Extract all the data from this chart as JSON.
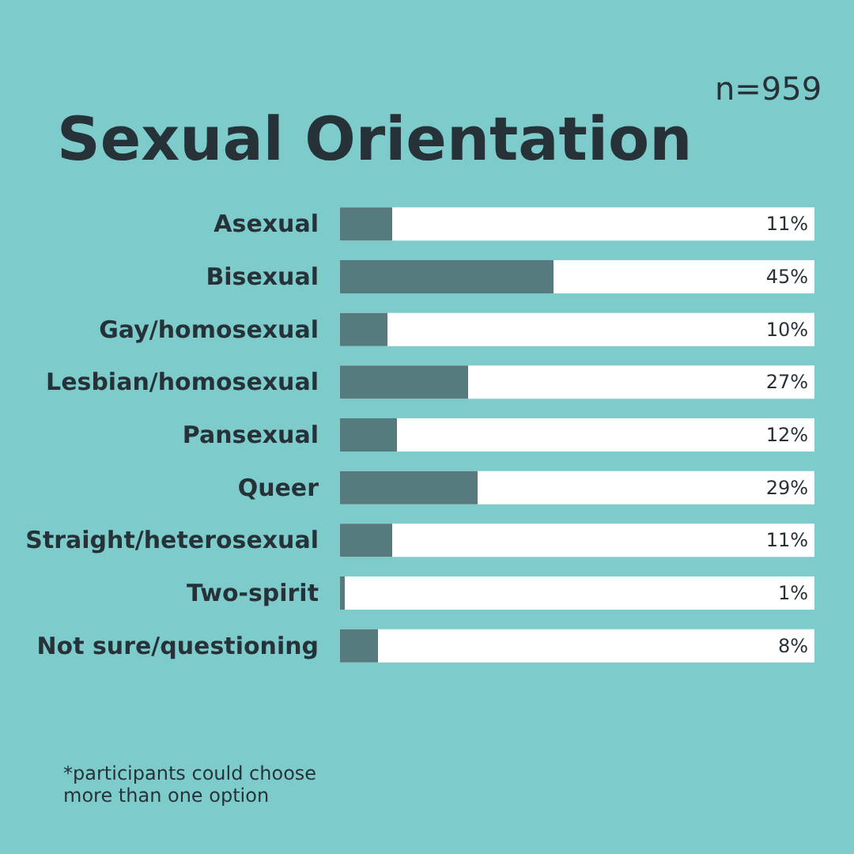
{
  "chart_data": {
    "type": "bar",
    "orientation": "horizontal",
    "title": "Sexual Orientation",
    "subtitle": "n=959",
    "categories": [
      "Asexual",
      "Bisexual",
      "Gay/homosexual",
      "Lesbian/homosexual",
      "Pansexual",
      "Queer",
      "Straight/heterosexual",
      "Two-spirit",
      "Not sure/questioning"
    ],
    "values": [
      11,
      45,
      10,
      27,
      12,
      29,
      11,
      1,
      8
    ],
    "value_labels": [
      "11%",
      "45%",
      "10%",
      "27%",
      "12%",
      "29%",
      "11%",
      "1%",
      "8%"
    ],
    "color": "#557b7e",
    "xlim": [
      0,
      100
    ],
    "tick_labels": "y",
    "annotations": [
      "*participants could choose more than one option"
    ]
  }
}
